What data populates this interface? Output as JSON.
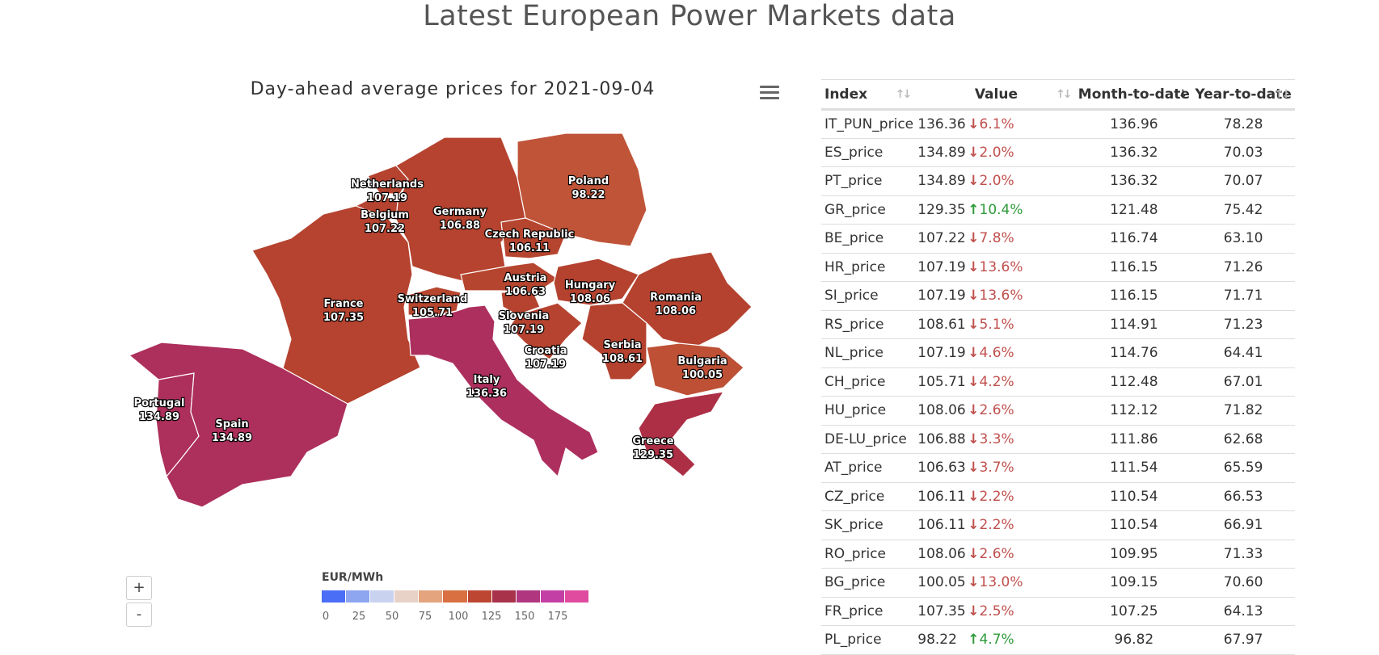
{
  "page": {
    "title": "Latest European Power Markets data"
  },
  "map": {
    "title": "Day-ahead average prices for 2021-09-04",
    "menu_icon": "hamburger-menu-icon",
    "zoom_in_label": "+",
    "zoom_out_label": "-",
    "legend": {
      "title": "EUR/MWh",
      "ticks": [
        "0",
        "25",
        "50",
        "75",
        "100",
        "125",
        "150",
        "175"
      ],
      "colors": [
        "#4a6ef5",
        "#8ea6f0",
        "#c9d3f0",
        "#e8d2c8",
        "#e3a47e",
        "#d87042",
        "#bd4632",
        "#a8324a",
        "#b0367f",
        "#c43fa5",
        "#e04a9f"
      ]
    },
    "regions": [
      {
        "name": "Netherlands",
        "value": "107.19",
        "color": "#b5432f"
      },
      {
        "name": "Belgium",
        "value": "107.22",
        "color": "#b5432f"
      },
      {
        "name": "Germany",
        "value": "106.88",
        "color": "#b5432f"
      },
      {
        "name": "Poland",
        "value": "98.22",
        "color": "#c05438"
      },
      {
        "name": "Czech Republic",
        "value": "106.11",
        "color": "#b6452f"
      },
      {
        "name": "France",
        "value": "107.35",
        "color": "#b5432f"
      },
      {
        "name": "Switzerland",
        "value": "105.71",
        "color": "#b7462f"
      },
      {
        "name": "Austria",
        "value": "106.63",
        "color": "#b6452f"
      },
      {
        "name": "Hungary",
        "value": "108.06",
        "color": "#b4422f"
      },
      {
        "name": "Romania",
        "value": "108.06",
        "color": "#b4422f"
      },
      {
        "name": "Slovenia",
        "value": "107.19",
        "color": "#b5432f"
      },
      {
        "name": "Croatia",
        "value": "107.19",
        "color": "#b5432f"
      },
      {
        "name": "Serbia",
        "value": "108.61",
        "color": "#b4422f"
      },
      {
        "name": "Bulgaria",
        "value": "100.05",
        "color": "#bd5035"
      },
      {
        "name": "Italy",
        "value": "136.36",
        "color": "#ad2f5e"
      },
      {
        "name": "Portugal",
        "value": "134.89",
        "color": "#ad2f5b"
      },
      {
        "name": "Spain",
        "value": "134.89",
        "color": "#ad2f5b"
      },
      {
        "name": "Greece",
        "value": "129.35",
        "color": "#ac2f45"
      }
    ]
  },
  "table": {
    "headers": {
      "index": "Index",
      "value": "Value",
      "mtd": "Month-to-date",
      "ytd": "Year-to-date"
    },
    "rows": [
      {
        "index": "IT_PUN_price",
        "value": "136.36",
        "change": "6.1%",
        "dir": "down",
        "mtd": "136.96",
        "ytd": "78.28"
      },
      {
        "index": "ES_price",
        "value": "134.89",
        "change": "2.0%",
        "dir": "down",
        "mtd": "136.32",
        "ytd": "70.03"
      },
      {
        "index": "PT_price",
        "value": "134.89",
        "change": "2.0%",
        "dir": "down",
        "mtd": "136.32",
        "ytd": "70.07"
      },
      {
        "index": "GR_price",
        "value": "129.35",
        "change": "10.4%",
        "dir": "up",
        "mtd": "121.48",
        "ytd": "75.42"
      },
      {
        "index": "BE_price",
        "value": "107.22",
        "change": "7.8%",
        "dir": "down",
        "mtd": "116.74",
        "ytd": "63.10"
      },
      {
        "index": "HR_price",
        "value": "107.19",
        "change": "13.6%",
        "dir": "down",
        "mtd": "116.15",
        "ytd": "71.26"
      },
      {
        "index": "SI_price",
        "value": "107.19",
        "change": "13.6%",
        "dir": "down",
        "mtd": "116.15",
        "ytd": "71.71"
      },
      {
        "index": "RS_price",
        "value": "108.61",
        "change": "5.1%",
        "dir": "down",
        "mtd": "114.91",
        "ytd": "71.23"
      },
      {
        "index": "NL_price",
        "value": "107.19",
        "change": "4.6%",
        "dir": "down",
        "mtd": "114.76",
        "ytd": "64.41"
      },
      {
        "index": "CH_price",
        "value": "105.71",
        "change": "4.2%",
        "dir": "down",
        "mtd": "112.48",
        "ytd": "67.01"
      },
      {
        "index": "HU_price",
        "value": "108.06",
        "change": "2.6%",
        "dir": "down",
        "mtd": "112.12",
        "ytd": "71.82"
      },
      {
        "index": "DE-LU_price",
        "value": "106.88",
        "change": "3.3%",
        "dir": "down",
        "mtd": "111.86",
        "ytd": "62.68"
      },
      {
        "index": "AT_price",
        "value": "106.63",
        "change": "3.7%",
        "dir": "down",
        "mtd": "111.54",
        "ytd": "65.59"
      },
      {
        "index": "CZ_price",
        "value": "106.11",
        "change": "2.2%",
        "dir": "down",
        "mtd": "110.54",
        "ytd": "66.53"
      },
      {
        "index": "SK_price",
        "value": "106.11",
        "change": "2.2%",
        "dir": "down",
        "mtd": "110.54",
        "ytd": "66.91"
      },
      {
        "index": "RO_price",
        "value": "108.06",
        "change": "2.6%",
        "dir": "down",
        "mtd": "109.95",
        "ytd": "71.33"
      },
      {
        "index": "BG_price",
        "value": "100.05",
        "change": "13.0%",
        "dir": "down",
        "mtd": "109.15",
        "ytd": "70.60"
      },
      {
        "index": "FR_price",
        "value": "107.35",
        "change": "2.5%",
        "dir": "down",
        "mtd": "107.25",
        "ytd": "64.13"
      },
      {
        "index": "PL_price",
        "value": "98.22",
        "change": "4.7%",
        "dir": "up",
        "mtd": "96.82",
        "ytd": "67.97"
      }
    ],
    "sort_icon": "sort-arrows-icon"
  },
  "colors": {
    "down": "#c0504d",
    "up": "#2e9b3a"
  }
}
